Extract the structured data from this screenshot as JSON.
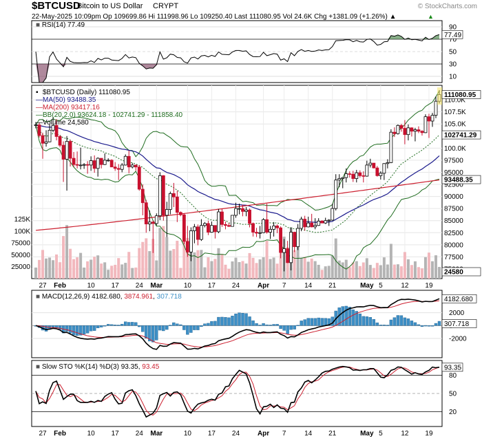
{
  "header": {
    "symbol": "$BTCUSD",
    "name": "Bitcoin to US Dollar",
    "exchange": "CRYPT",
    "watermark": "© StockCharts.com",
    "quote_line": "22-May-2025 10:09pm   Op 109699.86  Hi 111998.96  Lo 109250.40  Last 111080.95  Vol 24.6K  Chg +1381.09 (+1.26%) ▲"
  },
  "x_axis": {
    "labels": [
      "27",
      "Feb",
      "10",
      "17",
      "24",
      "Mar",
      "10",
      "17",
      "24",
      "Apr",
      "7",
      "14",
      "21",
      "May",
      "5",
      "12",
      "19"
    ],
    "bold_labels": [
      "Feb",
      "Mar",
      "Apr",
      "May"
    ]
  },
  "rsi": {
    "legend": "RSI(14) 77.49",
    "ticks": [
      "90",
      "70",
      "50",
      "30",
      "10"
    ],
    "last_label": "77.49"
  },
  "price": {
    "legend": [
      {
        "text": "$BTCUSD (Daily) 111080.95",
        "color": "#000000"
      },
      {
        "text": "MA(50) 93488.35",
        "color": "#1a1a8c"
      },
      {
        "text": "MA(200) 93417.16",
        "color": "#cc1f2f"
      },
      {
        "text": "BB(20,2.0) 93624.18 - 102741.29 - 111858.40",
        "color": "#1d6b1d"
      },
      {
        "text": "Volume 24,580",
        "color": "#000000"
      }
    ],
    "ticks": [
      "110.0K",
      "107.5K",
      "105.0K",
      "100.0K",
      "97500",
      "95000",
      "92500",
      "90000",
      "87500",
      "85000",
      "82500",
      "80000",
      "77500",
      "75000"
    ],
    "volume_ticks": [
      "125K",
      "100K",
      "75000",
      "50000",
      "25000"
    ],
    "tags": {
      "last": "111080.95",
      "bb_mid": "102741.29",
      "ma": "93488.35",
      "volume": "24580"
    }
  },
  "macd": {
    "legend_label": "MACD(12,26,9)",
    "legend_v1": "4182.680",
    "legend_v2": "3874.961",
    "legend_v3": "307.718",
    "ticks": [
      "2000",
      "0",
      "-2000"
    ],
    "tags": {
      "macd": "4182.680",
      "hist": "307.718"
    }
  },
  "sto": {
    "legend_label": "Slow STO %K(14) %D(3)",
    "legend_k": "93.35",
    "legend_d": "93.45",
    "ticks": [
      "80",
      "50",
      "20"
    ],
    "last_label": "93.35"
  },
  "colors": {
    "up": "#ffffff",
    "down": "#c8102e",
    "bb": "#1d6b1d",
    "ma50": "#1a1a8c",
    "ma200": "#cc1f2f",
    "macd_hist": "#3d8fc6",
    "volume_up": "#b4b4b4",
    "volume_down": "#f2b8bd"
  },
  "chart_data": {
    "type": "candlestick",
    "title": "Bitcoin to US Dollar",
    "xlabel": "",
    "ylabel": "",
    "ylim": [
      73000,
      113000
    ],
    "x_range": [
      "2025-01-25",
      "2025-05-22"
    ],
    "ohlc": [
      {
        "date": "2025-01-25",
        "o": 104700,
        "h": 105400,
        "l": 104100,
        "c": 104800
      },
      {
        "date": "2025-01-26",
        "o": 104800,
        "h": 105300,
        "l": 102200,
        "c": 102600
      },
      {
        "date": "2025-01-27",
        "o": 102600,
        "h": 103200,
        "l": 97800,
        "c": 101000
      },
      {
        "date": "2025-01-28",
        "o": 101000,
        "h": 103700,
        "l": 100300,
        "c": 101300
      },
      {
        "date": "2025-01-29",
        "o": 101300,
        "h": 104900,
        "l": 101200,
        "c": 103700
      },
      {
        "date": "2025-01-30",
        "o": 103700,
        "h": 106400,
        "l": 103300,
        "c": 104700
      },
      {
        "date": "2025-01-31",
        "o": 104700,
        "h": 106000,
        "l": 101600,
        "c": 102400
      },
      {
        "date": "2025-02-01",
        "o": 102400,
        "h": 102700,
        "l": 100200,
        "c": 100600
      },
      {
        "date": "2025-02-02",
        "o": 100600,
        "h": 101400,
        "l": 93000,
        "c": 97700
      },
      {
        "date": "2025-02-03",
        "o": 97700,
        "h": 102500,
        "l": 91200,
        "c": 101400
      },
      {
        "date": "2025-02-04",
        "o": 101400,
        "h": 101700,
        "l": 96200,
        "c": 97900
      },
      {
        "date": "2025-02-05",
        "o": 97900,
        "h": 99200,
        "l": 96100,
        "c": 96600
      },
      {
        "date": "2025-02-06",
        "o": 96600,
        "h": 99300,
        "l": 95800,
        "c": 96500
      },
      {
        "date": "2025-02-07",
        "o": 96500,
        "h": 100100,
        "l": 95600,
        "c": 96500
      },
      {
        "date": "2025-02-08",
        "o": 96500,
        "h": 96900,
        "l": 95700,
        "c": 96600
      },
      {
        "date": "2025-02-09",
        "o": 96600,
        "h": 97300,
        "l": 94700,
        "c": 96500
      },
      {
        "date": "2025-02-10",
        "o": 96500,
        "h": 98300,
        "l": 95300,
        "c": 97400
      },
      {
        "date": "2025-02-11",
        "o": 97400,
        "h": 98500,
        "l": 94900,
        "c": 95800
      },
      {
        "date": "2025-02-12",
        "o": 95800,
        "h": 98100,
        "l": 94100,
        "c": 97900
      },
      {
        "date": "2025-02-13",
        "o": 97900,
        "h": 97900,
        "l": 95800,
        "c": 96600
      },
      {
        "date": "2025-02-14",
        "o": 96600,
        "h": 98900,
        "l": 96500,
        "c": 97500
      },
      {
        "date": "2025-02-15",
        "o": 97500,
        "h": 97900,
        "l": 97200,
        "c": 97500
      },
      {
        "date": "2025-02-16",
        "o": 97500,
        "h": 97700,
        "l": 96100,
        "c": 96100
      },
      {
        "date": "2025-02-17",
        "o": 96100,
        "h": 97100,
        "l": 95300,
        "c": 95800
      },
      {
        "date": "2025-02-18",
        "o": 95800,
        "h": 96700,
        "l": 93400,
        "c": 95600
      },
      {
        "date": "2025-02-19",
        "o": 95600,
        "h": 96900,
        "l": 95000,
        "c": 96500
      },
      {
        "date": "2025-02-20",
        "o": 96500,
        "h": 98700,
        "l": 96400,
        "c": 98300
      },
      {
        "date": "2025-02-21",
        "o": 98300,
        "h": 99500,
        "l": 94800,
        "c": 96100
      },
      {
        "date": "2025-02-22",
        "o": 96100,
        "h": 96900,
        "l": 95800,
        "c": 96500
      },
      {
        "date": "2025-02-23",
        "o": 96500,
        "h": 96500,
        "l": 95300,
        "c": 96100
      },
      {
        "date": "2025-02-24",
        "o": 96100,
        "h": 96500,
        "l": 91200,
        "c": 91500
      },
      {
        "date": "2025-02-25",
        "o": 91500,
        "h": 92500,
        "l": 86100,
        "c": 88700
      },
      {
        "date": "2025-02-26",
        "o": 88700,
        "h": 89300,
        "l": 82500,
        "c": 84300
      },
      {
        "date": "2025-02-27",
        "o": 84300,
        "h": 87100,
        "l": 82800,
        "c": 84700
      },
      {
        "date": "2025-02-28",
        "o": 84700,
        "h": 85000,
        "l": 78300,
        "c": 84400
      },
      {
        "date": "2025-03-01",
        "o": 84400,
        "h": 86500,
        "l": 84000,
        "c": 86000
      },
      {
        "date": "2025-03-02",
        "o": 86000,
        "h": 95000,
        "l": 85100,
        "c": 94300
      },
      {
        "date": "2025-03-03",
        "o": 94300,
        "h": 94400,
        "l": 85000,
        "c": 86100
      },
      {
        "date": "2025-03-04",
        "o": 86100,
        "h": 88900,
        "l": 81600,
        "c": 87300
      },
      {
        "date": "2025-03-05",
        "o": 87300,
        "h": 91000,
        "l": 86300,
        "c": 90600
      },
      {
        "date": "2025-03-06",
        "o": 90600,
        "h": 92800,
        "l": 87800,
        "c": 89900
      },
      {
        "date": "2025-03-07",
        "o": 89900,
        "h": 91200,
        "l": 84700,
        "c": 86700
      },
      {
        "date": "2025-03-08",
        "o": 86700,
        "h": 86900,
        "l": 85900,
        "c": 86200
      },
      {
        "date": "2025-03-09",
        "o": 86200,
        "h": 86500,
        "l": 80100,
        "c": 80700
      },
      {
        "date": "2025-03-10",
        "o": 80700,
        "h": 83900,
        "l": 77500,
        "c": 78500
      },
      {
        "date": "2025-03-11",
        "o": 78500,
        "h": 83600,
        "l": 76600,
        "c": 82900
      },
      {
        "date": "2025-03-12",
        "o": 82900,
        "h": 84300,
        "l": 80300,
        "c": 83700
      },
      {
        "date": "2025-03-13",
        "o": 83700,
        "h": 84200,
        "l": 79900,
        "c": 81100
      },
      {
        "date": "2025-03-14",
        "o": 81100,
        "h": 85300,
        "l": 80800,
        "c": 84000
      },
      {
        "date": "2025-03-15",
        "o": 84000,
        "h": 84700,
        "l": 83600,
        "c": 84400
      },
      {
        "date": "2025-03-16",
        "o": 84400,
        "h": 85000,
        "l": 82000,
        "c": 82600
      },
      {
        "date": "2025-03-17",
        "o": 82600,
        "h": 84800,
        "l": 82500,
        "c": 84000
      },
      {
        "date": "2025-03-18",
        "o": 84000,
        "h": 84000,
        "l": 81300,
        "c": 82700
      },
      {
        "date": "2025-03-19",
        "o": 82700,
        "h": 87400,
        "l": 82400,
        "c": 86800
      },
      {
        "date": "2025-03-20",
        "o": 86800,
        "h": 87400,
        "l": 83700,
        "c": 84200
      },
      {
        "date": "2025-03-21",
        "o": 84200,
        "h": 84800,
        "l": 83200,
        "c": 84000
      },
      {
        "date": "2025-03-22",
        "o": 84000,
        "h": 84500,
        "l": 83700,
        "c": 83800
      },
      {
        "date": "2025-03-23",
        "o": 83800,
        "h": 86100,
        "l": 83800,
        "c": 86100
      },
      {
        "date": "2025-03-24",
        "o": 86100,
        "h": 88700,
        "l": 85600,
        "c": 87500
      },
      {
        "date": "2025-03-25",
        "o": 87500,
        "h": 88500,
        "l": 86300,
        "c": 87500
      },
      {
        "date": "2025-03-26",
        "o": 87500,
        "h": 88300,
        "l": 85900,
        "c": 86900
      },
      {
        "date": "2025-03-27",
        "o": 86900,
        "h": 87800,
        "l": 85900,
        "c": 87200
      },
      {
        "date": "2025-03-28",
        "o": 87200,
        "h": 87500,
        "l": 83600,
        "c": 84400
      },
      {
        "date": "2025-03-29",
        "o": 84400,
        "h": 84600,
        "l": 81700,
        "c": 82600
      },
      {
        "date": "2025-03-30",
        "o": 82600,
        "h": 83500,
        "l": 81600,
        "c": 82400
      },
      {
        "date": "2025-03-31",
        "o": 82400,
        "h": 83900,
        "l": 81300,
        "c": 82500
      },
      {
        "date": "2025-04-01",
        "o": 82500,
        "h": 85500,
        "l": 82400,
        "c": 85200
      },
      {
        "date": "2025-04-02",
        "o": 85200,
        "h": 88500,
        "l": 82300,
        "c": 82600
      },
      {
        "date": "2025-04-03",
        "o": 82600,
        "h": 83900,
        "l": 81200,
        "c": 83200
      },
      {
        "date": "2025-04-04",
        "o": 83200,
        "h": 84700,
        "l": 81700,
        "c": 83900
      },
      {
        "date": "2025-04-05",
        "o": 83900,
        "h": 84200,
        "l": 82400,
        "c": 83500
      },
      {
        "date": "2025-04-06",
        "o": 83500,
        "h": 83800,
        "l": 77200,
        "c": 78400
      },
      {
        "date": "2025-04-07",
        "o": 78400,
        "h": 81200,
        "l": 74500,
        "c": 79200
      },
      {
        "date": "2025-04-08",
        "o": 79200,
        "h": 80800,
        "l": 76200,
        "c": 76300
      },
      {
        "date": "2025-04-09",
        "o": 76300,
        "h": 83500,
        "l": 74700,
        "c": 82600
      },
      {
        "date": "2025-04-10",
        "o": 82600,
        "h": 82700,
        "l": 78500,
        "c": 79600
      },
      {
        "date": "2025-04-11",
        "o": 79600,
        "h": 84300,
        "l": 78900,
        "c": 83400
      },
      {
        "date": "2025-04-12",
        "o": 83400,
        "h": 85800,
        "l": 82800,
        "c": 85300
      },
      {
        "date": "2025-04-13",
        "o": 85300,
        "h": 86000,
        "l": 82900,
        "c": 83700
      },
      {
        "date": "2025-04-14",
        "o": 83700,
        "h": 85800,
        "l": 83600,
        "c": 84500
      },
      {
        "date": "2025-04-15",
        "o": 84500,
        "h": 86400,
        "l": 83600,
        "c": 83700
      },
      {
        "date": "2025-04-16",
        "o": 83700,
        "h": 85500,
        "l": 83200,
        "c": 84000
      },
      {
        "date": "2025-04-17",
        "o": 84000,
        "h": 85500,
        "l": 83900,
        "c": 84900
      },
      {
        "date": "2025-04-18",
        "o": 84900,
        "h": 85100,
        "l": 84500,
        "c": 84500
      },
      {
        "date": "2025-04-19",
        "o": 84500,
        "h": 85600,
        "l": 84300,
        "c": 85000
      },
      {
        "date": "2025-04-20",
        "o": 85000,
        "h": 85300,
        "l": 83900,
        "c": 85100
      },
      {
        "date": "2025-04-21",
        "o": 85100,
        "h": 88500,
        "l": 85000,
        "c": 87500
      },
      {
        "date": "2025-04-22",
        "o": 87500,
        "h": 94600,
        "l": 87100,
        "c": 93400
      },
      {
        "date": "2025-04-23",
        "o": 93400,
        "h": 94600,
        "l": 91900,
        "c": 93700
      },
      {
        "date": "2025-04-24",
        "o": 93700,
        "h": 94000,
        "l": 91700,
        "c": 93900
      },
      {
        "date": "2025-04-25",
        "o": 93900,
        "h": 95800,
        "l": 92900,
        "c": 94700
      },
      {
        "date": "2025-04-26",
        "o": 94700,
        "h": 95200,
        "l": 93900,
        "c": 94600
      },
      {
        "date": "2025-04-27",
        "o": 94600,
        "h": 95300,
        "l": 93000,
        "c": 93700
      },
      {
        "date": "2025-04-28",
        "o": 93700,
        "h": 95500,
        "l": 92900,
        "c": 94900
      },
      {
        "date": "2025-04-29",
        "o": 94900,
        "h": 95400,
        "l": 93900,
        "c": 94300
      },
      {
        "date": "2025-04-30",
        "o": 94300,
        "h": 95200,
        "l": 92900,
        "c": 94200
      },
      {
        "date": "2025-05-01",
        "o": 94200,
        "h": 97400,
        "l": 94100,
        "c": 96500
      },
      {
        "date": "2025-05-02",
        "o": 96500,
        "h": 97800,
        "l": 96000,
        "c": 96900
      },
      {
        "date": "2025-05-03",
        "o": 96900,
        "h": 96900,
        "l": 95800,
        "c": 95900
      },
      {
        "date": "2025-05-04",
        "o": 95900,
        "h": 96300,
        "l": 94100,
        "c": 94300
      },
      {
        "date": "2025-05-05",
        "o": 94300,
        "h": 95200,
        "l": 93500,
        "c": 94800
      },
      {
        "date": "2025-05-06",
        "o": 94800,
        "h": 96900,
        "l": 93400,
        "c": 96800
      },
      {
        "date": "2025-05-07",
        "o": 96800,
        "h": 97700,
        "l": 95800,
        "c": 97000
      },
      {
        "date": "2025-05-08",
        "o": 97000,
        "h": 103900,
        "l": 96900,
        "c": 103300
      },
      {
        "date": "2025-05-09",
        "o": 103300,
        "h": 104300,
        "l": 102300,
        "c": 103000
      },
      {
        "date": "2025-05-10",
        "o": 103000,
        "h": 104900,
        "l": 102800,
        "c": 104700
      },
      {
        "date": "2025-05-11",
        "o": 104700,
        "h": 105000,
        "l": 103400,
        "c": 104100
      },
      {
        "date": "2025-05-12",
        "o": 104100,
        "h": 105800,
        "l": 100800,
        "c": 102800
      },
      {
        "date": "2025-05-13",
        "o": 102800,
        "h": 104900,
        "l": 101600,
        "c": 104200
      },
      {
        "date": "2025-05-14",
        "o": 104200,
        "h": 104300,
        "l": 102400,
        "c": 103500
      },
      {
        "date": "2025-05-15",
        "o": 103500,
        "h": 104200,
        "l": 101400,
        "c": 103800
      },
      {
        "date": "2025-05-16",
        "o": 103800,
        "h": 104500,
        "l": 103100,
        "c": 103500
      },
      {
        "date": "2025-05-17",
        "o": 103500,
        "h": 103700,
        "l": 102600,
        "c": 103200
      },
      {
        "date": "2025-05-18",
        "o": 103200,
        "h": 107000,
        "l": 103100,
        "c": 106500
      },
      {
        "date": "2025-05-19",
        "o": 106500,
        "h": 107100,
        "l": 102100,
        "c": 105600
      },
      {
        "date": "2025-05-20",
        "o": 105600,
        "h": 107300,
        "l": 104400,
        "c": 106800
      },
      {
        "date": "2025-05-21",
        "o": 106800,
        "h": 110700,
        "l": 106200,
        "c": 109700
      },
      {
        "date": "2025-05-22",
        "o": 109699.86,
        "h": 111998.96,
        "l": 109250.4,
        "c": 111080.95
      }
    ],
    "current": {
      "open": 109699.86,
      "high": 111998.96,
      "low": 109250.4,
      "last": 111080.95,
      "volume": 24580,
      "change": 1381.09,
      "change_pct": 1.26
    },
    "indicators": {
      "ma50": {
        "last": 93488.35
      },
      "ma200": {
        "last": 93417.16
      },
      "bb_20_2": {
        "lower": 93624.18,
        "mid": 102741.29,
        "upper": 111858.4
      },
      "rsi14": {
        "last": 77.49,
        "ylim": [
          0,
          100
        ]
      },
      "macd_12_26_9": {
        "macd": 4182.68,
        "signal": 3874.961,
        "histogram": 307.718
      },
      "slow_sto_14_3": {
        "k": 93.35,
        "d": 93.45,
        "ylim": [
          0,
          100
        ]
      }
    },
    "volume_ylim": [
      0,
      130000
    ]
  }
}
